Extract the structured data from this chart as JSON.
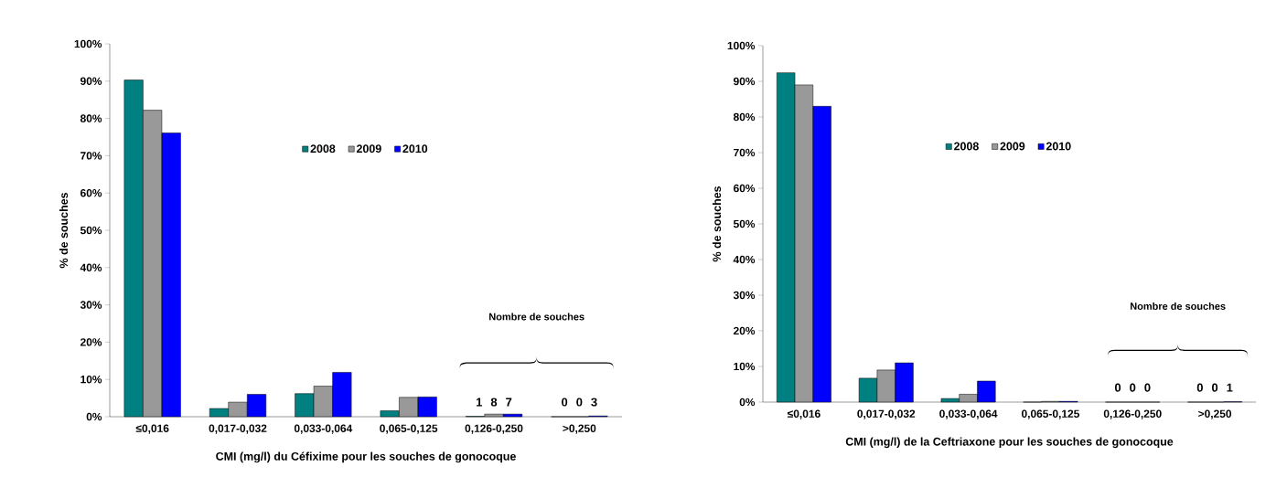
{
  "chart_data": [
    {
      "type": "bar",
      "categories": [
        "≤0,016",
        "0,017-0,032",
        "0,033-0,064",
        "0,065-0,125",
        "0,126-0,250",
        ">0,250"
      ],
      "series": [
        {
          "name": "2008",
          "color": "#008080",
          "values": [
            90.3,
            2.2,
            6.2,
            1.6,
            0.1,
            0
          ]
        },
        {
          "name": "2009",
          "color": "#999999",
          "values": [
            82.2,
            3.9,
            8.2,
            5.2,
            0.7,
            0
          ]
        },
        {
          "name": "2010",
          "color": "#0000ff",
          "values": [
            76.1,
            6.0,
            11.9,
            5.3,
            0.7,
            0.2
          ]
        }
      ],
      "ylim": [
        0,
        100
      ],
      "yticks": [
        {
          "value": 0,
          "label": "0%"
        },
        {
          "value": 10,
          "label": "10%"
        },
        {
          "value": 20,
          "label": "20%"
        },
        {
          "value": 30,
          "label": "30%"
        },
        {
          "value": 40,
          "label": "40%"
        },
        {
          "value": 50,
          "label": "50%"
        },
        {
          "value": 60,
          "label": "60%"
        },
        {
          "value": 70,
          "label": "70%"
        },
        {
          "value": 80,
          "label": "80%"
        },
        {
          "value": 90,
          "label": "90%"
        },
        {
          "value": 100,
          "label": "100%"
        }
      ],
      "xlabel": "CMI (mg/l) du Céfixime pour les souches de gonocoque",
      "ylabel": "% de souches",
      "legend": "top",
      "grid": false,
      "annotations": [
        "Nombre de souches",
        "1 8 7",
        "0 0 3"
      ]
    },
    {
      "type": "bar",
      "categories": [
        "≤0,016",
        "0,017-0,032",
        "0,033-0,064",
        "0,065-0,125",
        "0,126-0,250",
        ">0,250"
      ],
      "series": [
        {
          "name": "2008",
          "color": "#008080",
          "values": [
            92.4,
            6.7,
            1.0,
            0,
            0,
            0
          ]
        },
        {
          "name": "2009",
          "color": "#999999",
          "values": [
            89.0,
            9.0,
            2.2,
            0.2,
            0,
            0
          ]
        },
        {
          "name": "2010",
          "color": "#0000ff",
          "values": [
            83.0,
            11.0,
            5.9,
            0.2,
            0,
            0.1
          ]
        }
      ],
      "ylim": [
        0,
        100
      ],
      "yticks": [
        {
          "value": 0,
          "label": "0%"
        },
        {
          "value": 10,
          "label": "10%"
        },
        {
          "value": 20,
          "label": "20%"
        },
        {
          "value": 30,
          "label": "30%"
        },
        {
          "value": 40,
          "label": "40%"
        },
        {
          "value": 50,
          "label": "50%"
        },
        {
          "value": 60,
          "label": "60%"
        },
        {
          "value": 70,
          "label": "70%"
        },
        {
          "value": 80,
          "label": "80%"
        },
        {
          "value": 90,
          "label": "90%"
        },
        {
          "value": 100,
          "label": "100%"
        }
      ],
      "xlabel": "CMI (mg/l) de la Ceftriaxone pour les souches de gonocoque",
      "ylabel": "% de souches",
      "legend": "top",
      "grid": false,
      "annotations": [
        "Nombre de souches",
        "0 0 0",
        "0 0 1"
      ]
    }
  ]
}
